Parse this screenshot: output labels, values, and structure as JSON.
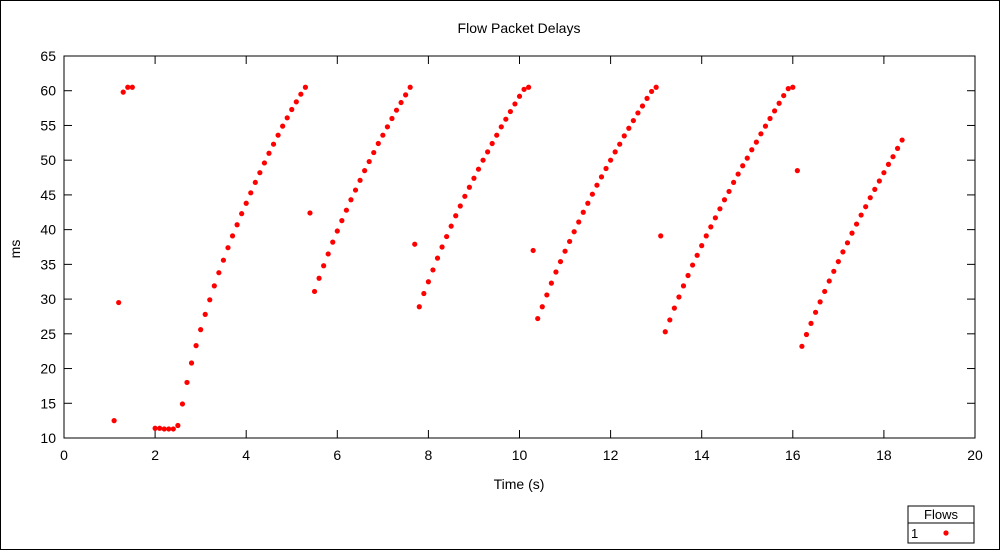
{
  "chart_data": {
    "type": "scatter",
    "title": "Flow Packet Delays",
    "xlabel": "Time (s)",
    "ylabel": "ms",
    "xlim": [
      0,
      20
    ],
    "ylim": [
      10,
      65
    ],
    "xticks": [
      0,
      2,
      4,
      6,
      8,
      10,
      12,
      14,
      16,
      18,
      20
    ],
    "yticks": [
      10,
      15,
      20,
      25,
      30,
      35,
      40,
      45,
      50,
      55,
      60,
      65
    ],
    "grid": false,
    "legend": {
      "title": "Flows",
      "placement": "bottom-right",
      "entries": [
        "1"
      ]
    },
    "series": [
      {
        "name": "1",
        "color": "#ff0000",
        "points": [
          [
            1.1,
            12.5
          ],
          [
            1.2,
            29.5
          ],
          [
            1.3,
            59.8
          ],
          [
            1.4,
            60.5
          ],
          [
            1.5,
            60.5
          ],
          [
            2.0,
            11.4
          ],
          [
            2.1,
            11.4
          ],
          [
            2.2,
            11.3
          ],
          [
            2.3,
            11.3
          ],
          [
            2.4,
            11.3
          ],
          [
            2.5,
            11.8
          ],
          [
            2.6,
            14.9
          ],
          [
            2.7,
            18.0
          ],
          [
            2.8,
            20.8
          ],
          [
            2.9,
            23.3
          ],
          [
            3.0,
            25.6
          ],
          [
            3.1,
            27.8
          ],
          [
            3.2,
            29.9
          ],
          [
            3.3,
            31.9
          ],
          [
            3.4,
            33.8
          ],
          [
            3.5,
            35.6
          ],
          [
            3.6,
            37.4
          ],
          [
            3.7,
            39.1
          ],
          [
            3.8,
            40.7
          ],
          [
            3.9,
            42.3
          ],
          [
            4.0,
            43.8
          ],
          [
            4.1,
            45.3
          ],
          [
            4.2,
            46.8
          ],
          [
            4.3,
            48.2
          ],
          [
            4.4,
            49.6
          ],
          [
            4.5,
            51.0
          ],
          [
            4.6,
            52.3
          ],
          [
            4.7,
            53.6
          ],
          [
            4.8,
            54.9
          ],
          [
            4.9,
            56.1
          ],
          [
            5.0,
            57.3
          ],
          [
            5.1,
            58.4
          ],
          [
            5.2,
            59.5
          ],
          [
            5.3,
            60.5
          ],
          [
            5.4,
            42.4
          ],
          [
            5.5,
            31.1
          ],
          [
            5.6,
            33.0
          ],
          [
            5.7,
            34.8
          ],
          [
            5.8,
            36.5
          ],
          [
            5.9,
            38.2
          ],
          [
            6.0,
            39.8
          ],
          [
            6.1,
            41.3
          ],
          [
            6.2,
            42.8
          ],
          [
            6.3,
            44.3
          ],
          [
            6.4,
            45.7
          ],
          [
            6.5,
            47.1
          ],
          [
            6.6,
            48.5
          ],
          [
            6.7,
            49.8
          ],
          [
            6.8,
            51.1
          ],
          [
            6.9,
            52.4
          ],
          [
            7.0,
            53.6
          ],
          [
            7.1,
            54.8
          ],
          [
            7.2,
            56.0
          ],
          [
            7.3,
            57.2
          ],
          [
            7.4,
            58.3
          ],
          [
            7.5,
            59.4
          ],
          [
            7.6,
            60.5
          ],
          [
            7.7,
            37.9
          ],
          [
            7.8,
            28.9
          ],
          [
            7.9,
            30.8
          ],
          [
            8.0,
            32.5
          ],
          [
            8.1,
            34.2
          ],
          [
            8.2,
            35.9
          ],
          [
            8.3,
            37.5
          ],
          [
            8.4,
            39.0
          ],
          [
            8.5,
            40.5
          ],
          [
            8.6,
            42.0
          ],
          [
            8.7,
            43.4
          ],
          [
            8.8,
            44.8
          ],
          [
            8.9,
            46.1
          ],
          [
            9.0,
            47.4
          ],
          [
            9.1,
            48.7
          ],
          [
            9.2,
            50.0
          ],
          [
            9.3,
            51.2
          ],
          [
            9.4,
            52.4
          ],
          [
            9.5,
            53.6
          ],
          [
            9.6,
            54.8
          ],
          [
            9.7,
            55.9
          ],
          [
            9.8,
            57.0
          ],
          [
            9.9,
            58.1
          ],
          [
            10.0,
            59.2
          ],
          [
            10.1,
            60.2
          ],
          [
            10.2,
            60.5
          ],
          [
            10.3,
            37.0
          ],
          [
            10.4,
            27.2
          ],
          [
            10.5,
            28.9
          ],
          [
            10.6,
            30.6
          ],
          [
            10.7,
            32.3
          ],
          [
            10.8,
            33.9
          ],
          [
            10.9,
            35.4
          ],
          [
            11.0,
            36.9
          ],
          [
            11.1,
            38.3
          ],
          [
            11.2,
            39.7
          ],
          [
            11.3,
            41.1
          ],
          [
            11.4,
            42.5
          ],
          [
            11.5,
            43.8
          ],
          [
            11.6,
            45.1
          ],
          [
            11.7,
            46.4
          ],
          [
            11.8,
            47.6
          ],
          [
            11.9,
            48.8
          ],
          [
            12.0,
            50.0
          ],
          [
            12.1,
            51.2
          ],
          [
            12.2,
            52.3
          ],
          [
            12.3,
            53.5
          ],
          [
            12.4,
            54.6
          ],
          [
            12.5,
            55.7
          ],
          [
            12.6,
            56.8
          ],
          [
            12.7,
            57.8
          ],
          [
            12.8,
            58.9
          ],
          [
            12.9,
            59.9
          ],
          [
            13.0,
            60.5
          ],
          [
            13.1,
            39.1
          ],
          [
            13.2,
            25.3
          ],
          [
            13.3,
            27.0
          ],
          [
            13.4,
            28.7
          ],
          [
            13.5,
            30.3
          ],
          [
            13.6,
            31.9
          ],
          [
            13.7,
            33.4
          ],
          [
            13.8,
            34.9
          ],
          [
            13.9,
            36.3
          ],
          [
            14.0,
            37.7
          ],
          [
            14.1,
            39.1
          ],
          [
            14.2,
            40.4
          ],
          [
            14.3,
            41.7
          ],
          [
            14.4,
            43.0
          ],
          [
            14.5,
            44.3
          ],
          [
            14.6,
            45.5
          ],
          [
            14.7,
            46.8
          ],
          [
            14.8,
            48.0
          ],
          [
            14.9,
            49.2
          ],
          [
            15.0,
            50.3
          ],
          [
            15.1,
            51.5
          ],
          [
            15.2,
            52.6
          ],
          [
            15.3,
            53.8
          ],
          [
            15.4,
            54.9
          ],
          [
            15.5,
            56.0
          ],
          [
            15.6,
            57.1
          ],
          [
            15.7,
            58.2
          ],
          [
            15.8,
            59.3
          ],
          [
            15.9,
            60.3
          ],
          [
            16.0,
            60.5
          ],
          [
            16.1,
            48.5
          ],
          [
            16.2,
            23.2
          ],
          [
            16.3,
            24.9
          ],
          [
            16.4,
            26.5
          ],
          [
            16.5,
            28.1
          ],
          [
            16.6,
            29.6
          ],
          [
            16.7,
            31.1
          ],
          [
            16.8,
            32.6
          ],
          [
            16.9,
            34.0
          ],
          [
            17.0,
            35.4
          ],
          [
            17.1,
            36.8
          ],
          [
            17.2,
            38.1
          ],
          [
            17.3,
            39.5
          ],
          [
            17.4,
            40.8
          ],
          [
            17.5,
            42.1
          ],
          [
            17.6,
            43.3
          ],
          [
            17.7,
            44.6
          ],
          [
            17.8,
            45.8
          ],
          [
            17.9,
            47.0
          ],
          [
            18.0,
            48.2
          ],
          [
            18.1,
            49.4
          ],
          [
            18.2,
            50.5
          ],
          [
            18.3,
            51.7
          ],
          [
            18.4,
            52.9
          ]
        ]
      }
    ]
  }
}
